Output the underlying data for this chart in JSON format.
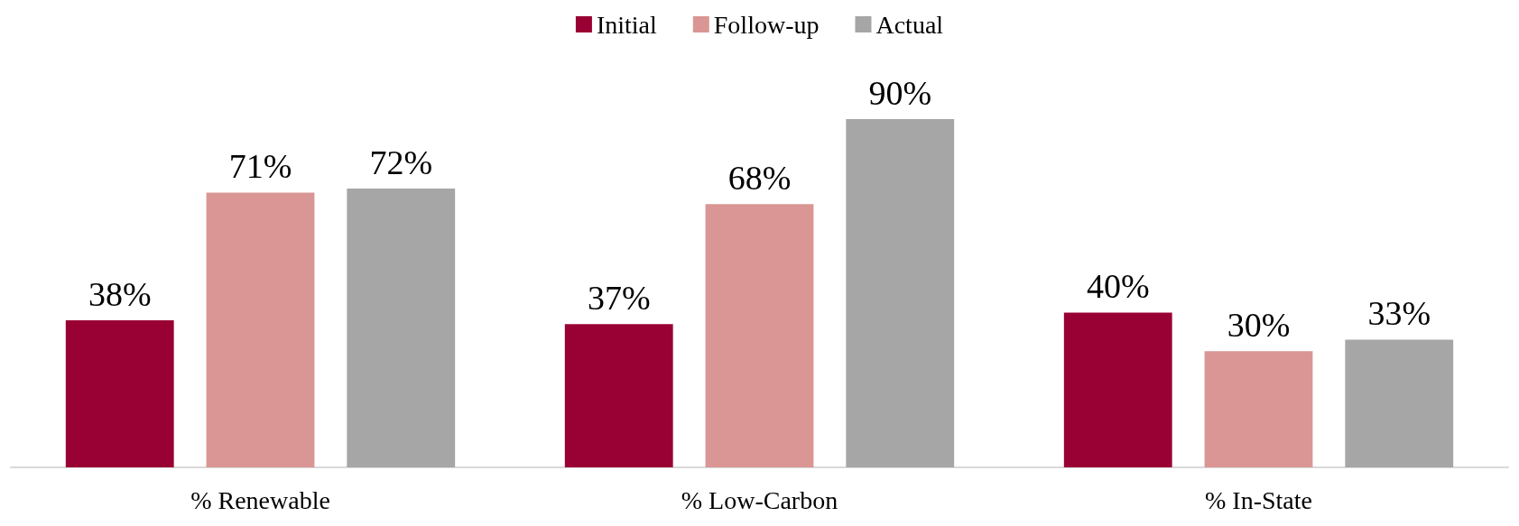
{
  "chart_data": {
    "type": "bar",
    "categories": [
      "% Renewable",
      "% Low-Carbon",
      "% In-State"
    ],
    "series": [
      {
        "name": "Initial",
        "color": "#990033",
        "values": [
          38,
          37,
          40
        ],
        "value_labels": [
          "38%",
          "37%",
          "40%"
        ]
      },
      {
        "name": "Follow-up",
        "color": "#d99694",
        "values": [
          71,
          68,
          30
        ],
        "value_labels": [
          "71%",
          "68%",
          "30%"
        ]
      },
      {
        "name": "Actual",
        "color": "#a6a6a6",
        "values": [
          72,
          90,
          33
        ],
        "value_labels": [
          "72%",
          "90%",
          "33%"
        ]
      }
    ],
    "legend": "top"
  }
}
